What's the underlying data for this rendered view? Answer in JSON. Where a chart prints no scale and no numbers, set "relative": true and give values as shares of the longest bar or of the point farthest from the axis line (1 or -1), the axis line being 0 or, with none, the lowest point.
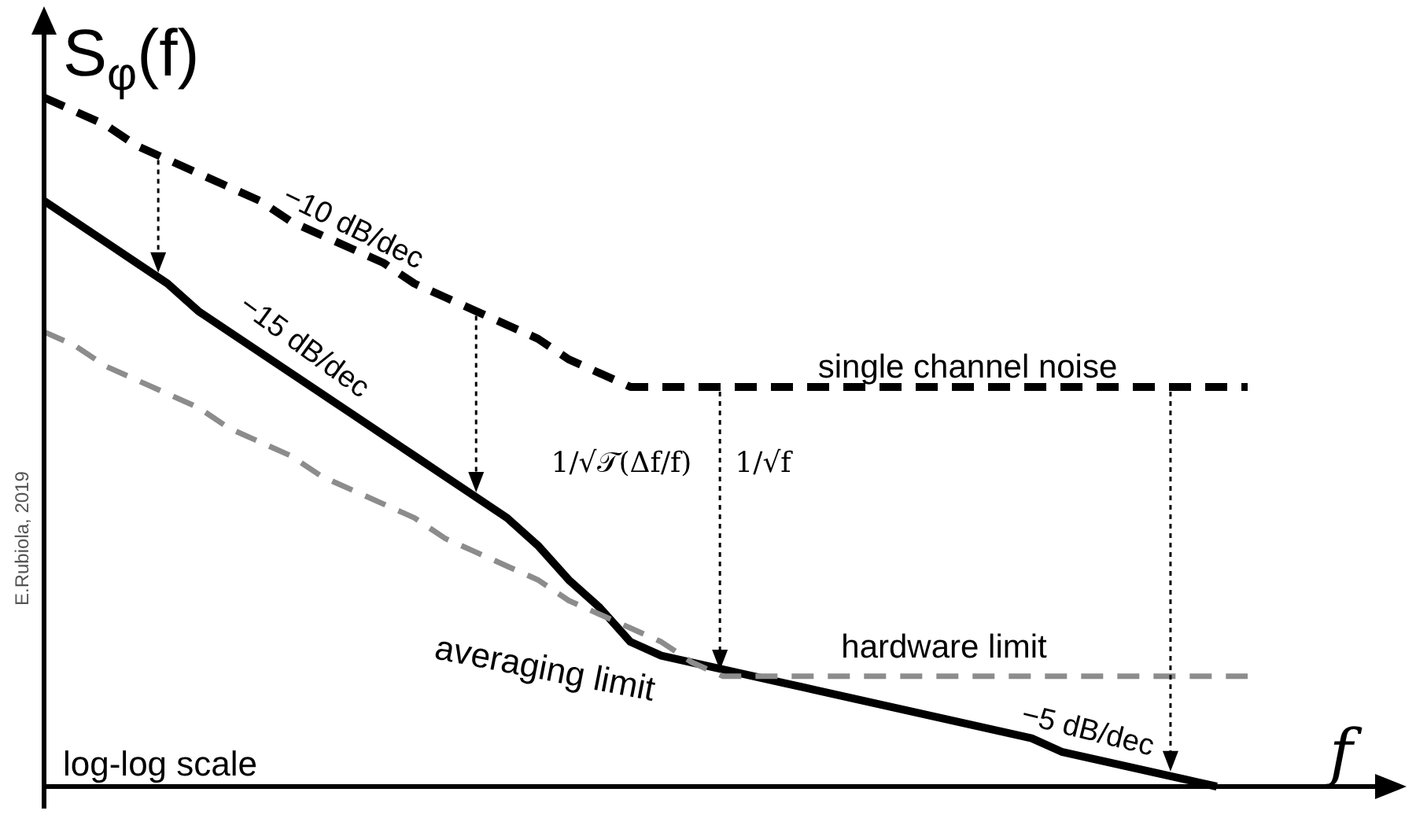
{
  "chart_data": {
    "type": "line",
    "relative": true,
    "xlabel": "f",
    "ylabel": "S$_{φ}$(f)",
    "marker": "none",
    "categories": [
      null,
      null,
      null,
      null,
      null,
      null,
      null,
      null,
      null,
      null,
      null,
      null,
      null,
      null,
      null,
      null,
      null,
      null,
      null,
      null,
      null,
      null,
      null,
      null,
      null,
      null,
      null,
      null,
      null,
      null,
      null,
      null,
      null,
      null,
      null,
      null,
      null,
      null,
      null,
      null
    ],
    "series": [
      {
        "color": "#000000",
        "line_style": "dashed",
        "values": [
          1,
          0.98,
          0.96,
          0.93,
          0.91,
          0.89,
          0.87,
          0.85,
          0.82,
          0.8,
          0.78,
          0.76,
          0.73,
          0.71,
          0.69,
          0.67,
          0.65,
          0.62,
          0.6,
          0.58,
          0.58,
          0.58,
          0.58,
          0.58,
          0.58,
          0.58,
          0.58,
          0.58,
          0.58,
          0.58,
          0.58,
          0.58,
          0.58,
          0.58,
          0.58,
          0.58,
          0.58,
          0.58,
          0.58,
          0.58
        ]
      },
      {
        "color": "#000000",
        "line_style": "solid",
        "values": [
          0.85,
          0.82,
          0.79,
          0.76,
          0.73,
          0.69,
          0.66,
          0.63,
          0.6,
          0.57,
          0.54,
          0.51,
          0.48,
          0.45,
          0.42,
          0.39,
          0.35,
          0.3,
          0.26,
          0.21,
          0.19,
          0.18,
          0.17,
          0.16,
          0.15,
          0.14,
          0.13,
          0.12,
          0.11,
          0.1,
          0.09,
          0.08,
          0.07,
          0.05,
          0.04,
          0.03,
          0.02,
          0.01,
          0,
          null
        ]
      },
      {
        "color": "#8c8c8c",
        "line_style": "dashed",
        "values": [
          0.66,
          0.64,
          0.61,
          0.59,
          0.57,
          0.55,
          0.52,
          0.5,
          0.48,
          0.45,
          0.43,
          0.41,
          0.39,
          0.36,
          0.34,
          0.32,
          0.3,
          0.27,
          0.25,
          0.23,
          0.21,
          0.18,
          0.16,
          0.16,
          0.16,
          0.16,
          0.16,
          0.16,
          0.16,
          0.16,
          0.16,
          0.16,
          0.16,
          0.16,
          0.16,
          0.16,
          0.16,
          0.16,
          0.16,
          0.16
        ]
      }
    ],
    "annotations": [
      "−10 dB/dec",
      "−15 dB/dec",
      "single channel noise",
      "1/√𝒯(Δf/f)",
      "1/√f",
      "averaging limit",
      "hardware limit",
      "−5 dB/dec",
      "log-log scale",
      "E.Rubiola, 2019"
    ]
  }
}
